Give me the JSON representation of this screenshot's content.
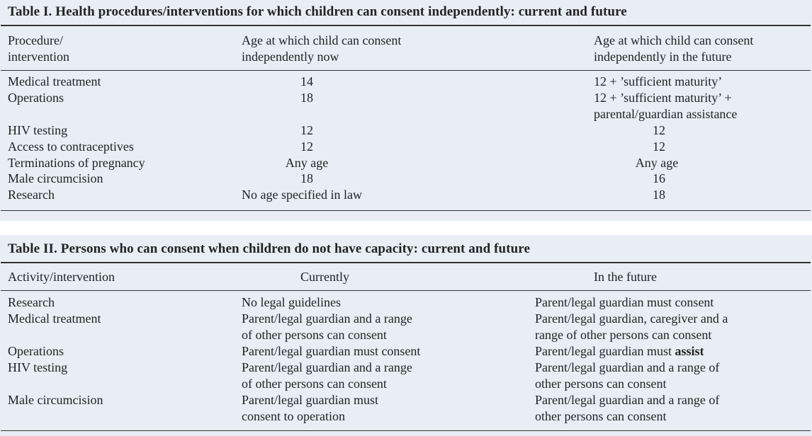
{
  "table1": {
    "caption": "Table I. Health procedures/interventions for which children can consent independently: current and future",
    "headers": {
      "col1": [
        "Procedure/",
        "intervention"
      ],
      "col2": [
        "Age at which child can consent",
        "independently now"
      ],
      "col3": [
        "Age at which child can consent",
        "independently in the future"
      ]
    },
    "rows": [
      {
        "procedure": "Medical treatment",
        "now": "14",
        "future": [
          "12 + ’sufficient maturity’"
        ]
      },
      {
        "procedure": "Operations",
        "now": "18",
        "future": [
          "12 + ’sufficient maturity’ +",
          "parental/guardian assistance"
        ]
      },
      {
        "procedure": "HIV testing",
        "now": "12",
        "future": [
          "12"
        ]
      },
      {
        "procedure": "Access to contraceptives",
        "now": "12",
        "future": [
          "12"
        ]
      },
      {
        "procedure": "Terminations of pregnancy",
        "now": "Any age",
        "future": [
          "Any age"
        ]
      },
      {
        "procedure": "Male circumcision",
        "now": "18",
        "future": [
          "16"
        ]
      },
      {
        "procedure": "Research",
        "now": "No age specified in law",
        "future": [
          "18"
        ]
      }
    ]
  },
  "table2": {
    "caption": "Table II. Persons who can consent when children do not have capacity: current and future",
    "headers": {
      "col1": "Activity/intervention",
      "col2": "Currently",
      "col3": "In the future"
    },
    "rows": [
      {
        "activity": "Research",
        "currently": [
          "No legal guidelines"
        ],
        "future": [
          "Parent/legal guardian must consent"
        ]
      },
      {
        "activity": "Medical treatment",
        "currently": [
          "Parent/legal guardian and a range",
          "of other persons can consent"
        ],
        "future": [
          "Parent/legal guardian, caregiver and a",
          "range of other persons can consent"
        ]
      },
      {
        "activity": "Operations",
        "currently": [
          "Parent/legal guardian must consent"
        ],
        "future": [
          "Parent/legal guardian must ",
          "assist"
        ]
      },
      {
        "activity": "HIV testing",
        "currently": [
          "Parent/legal guardian and a range",
          "of other persons can consent"
        ],
        "future": [
          "Parent/legal guardian and a range of",
          "other persons can consent"
        ]
      },
      {
        "activity": "Male circumcision",
        "currently": [
          "Parent/legal guardian must",
          "consent to operation"
        ],
        "future": [
          "Parent/legal guardian and a range of",
          "other persons can consent"
        ]
      }
    ]
  }
}
